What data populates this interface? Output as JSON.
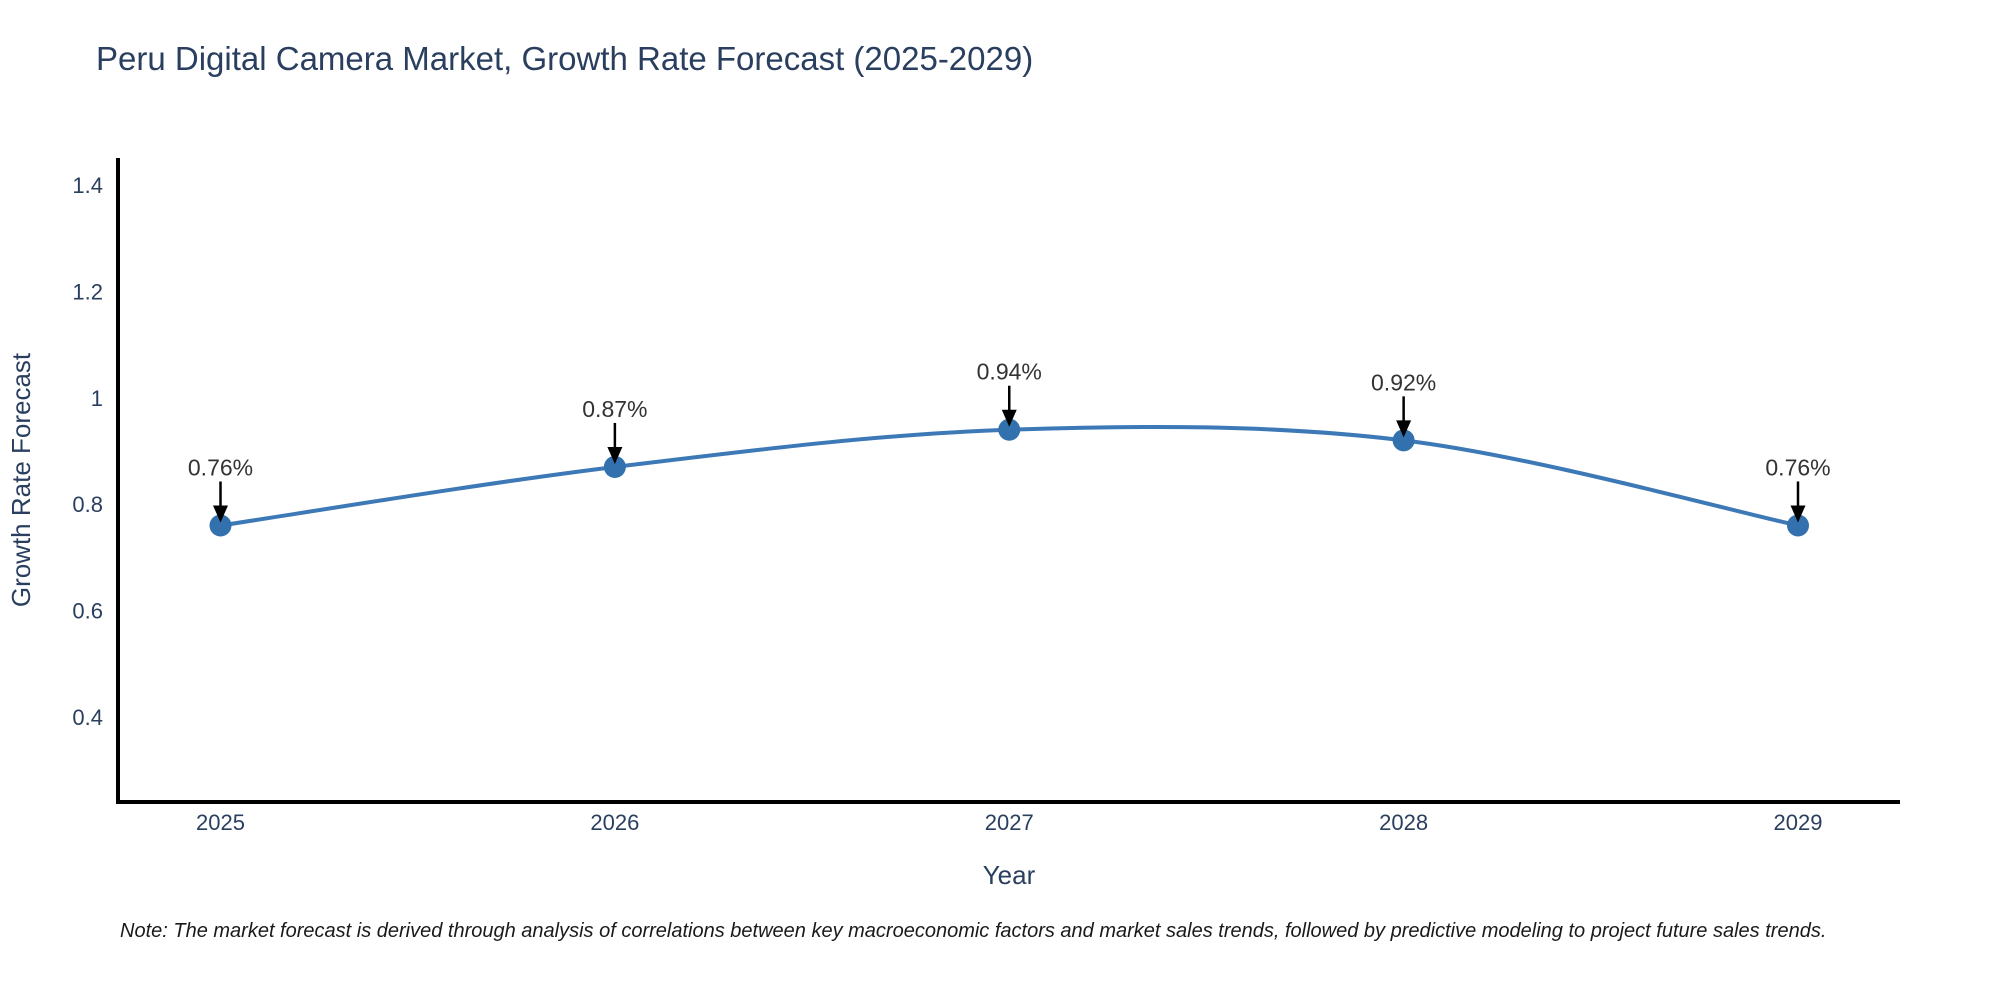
{
  "chart_data": {
    "type": "line",
    "title": "Peru Digital Camera Market, Growth Rate Forecast (2025-2029)",
    "xlabel": "Year",
    "ylabel": "Growth Rate Forecast",
    "categories": [
      "2025",
      "2026",
      "2027",
      "2028",
      "2029"
    ],
    "values": [
      0.76,
      0.87,
      0.94,
      0.92,
      0.76
    ],
    "point_labels": [
      "0.76%",
      "0.87%",
      "0.94%",
      "0.92%",
      "0.76%"
    ],
    "y_ticks": [
      1.4,
      1.2,
      1.0,
      0.8,
      0.6,
      0.4
    ],
    "ylim": [
      0.24,
      1.44
    ],
    "grid": false,
    "legend": "none",
    "line_shape": "spline",
    "colors": {
      "line": "#3c79b6",
      "marker": "#3271ad",
      "axis": "#000000",
      "tick_label": "#2a3f5f",
      "axis_title": "#2a3f5f",
      "chart_title": "#2a3f5f",
      "annotation_text": "#333333",
      "annotation_arrow": "#000000",
      "background": "#ffffff"
    }
  },
  "note": "Note: The market forecast is derived through analysis of correlations between key macroeconomic factors and market sales trends, followed by predictive modeling to project future sales trends."
}
